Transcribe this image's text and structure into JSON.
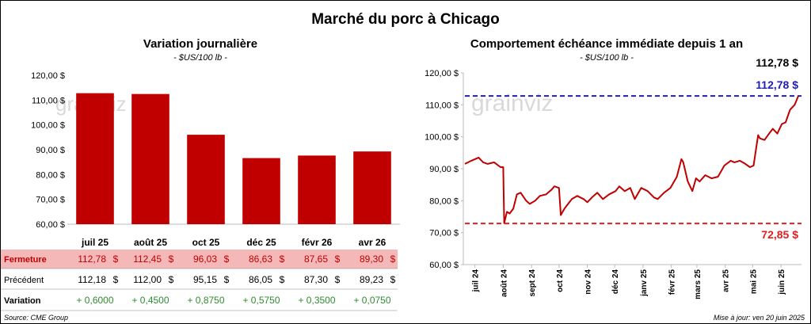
{
  "main_title": "Marché du porc à Chicago",
  "left": {
    "title": "Variation journalière",
    "subtitle": "- $US/100 lb -",
    "watermark": "grainviz",
    "row_labels": {
      "close": "Fermeture",
      "previous": "Précédent",
      "change": "Variation"
    },
    "currency": "$",
    "colors": {
      "bar": "#c00000",
      "close_row_bg": "#f4b8b8",
      "close_text": "#c00000",
      "change_text": "#2e8b2e"
    }
  },
  "right": {
    "title": "Comportement échéance immédiate depuis 1 an",
    "subtitle": "- $US/100 lb -",
    "watermark": "grainviz",
    "top_value_label": "112,78 $",
    "high_label": "112,78 $",
    "low_label": "72,85 $",
    "colors": {
      "line": "#c00000",
      "high_line": "#1f1fb0",
      "low_line": "#e02020"
    }
  },
  "footer": {
    "source": "Source: CME Group",
    "updated": "Mise à jour: ven 20 juin 2025"
  },
  "chart_data": [
    {
      "type": "bar",
      "title": "Variation journalière",
      "subtitle": "- $US/100 lb -",
      "categories": [
        "juil 25",
        "août 25",
        "oct 25",
        "déc 25",
        "févr 26",
        "avr 26"
      ],
      "series": [
        {
          "name": "Fermeture",
          "values": [
            112.78,
            112.45,
            96.03,
            86.63,
            87.65,
            89.3
          ]
        }
      ],
      "close_labels": [
        "112,78",
        "112,45",
        "96,03",
        "86,63",
        "87,65",
        "89,30"
      ],
      "previous": [
        112.18,
        112.0,
        95.15,
        86.05,
        87.3,
        89.23
      ],
      "previous_labels": [
        "112,18",
        "112,00",
        "95,15",
        "86,05",
        "87,30",
        "89,23"
      ],
      "change": [
        0.6,
        0.45,
        0.875,
        0.575,
        0.35,
        0.075
      ],
      "change_labels": [
        "+ 0,6000",
        "+ 0,4500",
        "+ 0,8750",
        "+ 0,5750",
        "+ 0,3500",
        "+ 0,0750"
      ],
      "ylim": [
        60,
        120
      ],
      "yticks": [
        60,
        70,
        80,
        90,
        100,
        110,
        120
      ],
      "ytick_labels": [
        "60,00 $",
        "70,00 $",
        "80,00 $",
        "90,00 $",
        "100,00 $",
        "110,00 $",
        "120,00 $"
      ],
      "grid": false,
      "legend": "none"
    },
    {
      "type": "line",
      "title": "Comportement échéance immédiate depuis 1 an",
      "subtitle": "- $US/100 lb -",
      "x": [
        "2024-06-20",
        "2024-06-27",
        "2024-07-05",
        "2024-07-10",
        "2024-07-15",
        "2024-07-22",
        "2024-07-29",
        "2024-08-01",
        "2024-08-02",
        "2024-08-05",
        "2024-08-08",
        "2024-08-12",
        "2024-08-16",
        "2024-08-20",
        "2024-08-26",
        "2024-08-30",
        "2024-09-05",
        "2024-09-10",
        "2024-09-17",
        "2024-09-23",
        "2024-09-26",
        "2024-10-01",
        "2024-10-03",
        "2024-10-07",
        "2024-10-11",
        "2024-10-15",
        "2024-10-21",
        "2024-10-28",
        "2024-11-01",
        "2024-11-06",
        "2024-11-12",
        "2024-11-18",
        "2024-11-25",
        "2024-12-02",
        "2024-12-06",
        "2024-12-12",
        "2024-12-18",
        "2024-12-23",
        "2024-12-30",
        "2025-01-06",
        "2025-01-13",
        "2025-01-17",
        "2025-01-24",
        "2025-01-31",
        "2025-02-07",
        "2025-02-12",
        "2025-02-14",
        "2025-02-19",
        "2025-02-24",
        "2025-02-28",
        "2025-03-04",
        "2025-03-10",
        "2025-03-17",
        "2025-03-24",
        "2025-03-31",
        "2025-04-07",
        "2025-04-11",
        "2025-04-17",
        "2025-04-23",
        "2025-04-28",
        "2025-05-02",
        "2025-05-07",
        "2025-05-09",
        "2025-05-14",
        "2025-05-19",
        "2025-05-23",
        "2025-05-28",
        "2025-06-02",
        "2025-06-06",
        "2025-06-11",
        "2025-06-16",
        "2025-06-20"
      ],
      "series": [
        {
          "values": [
            91.5,
            92.5,
            93.5,
            92.0,
            91.5,
            92.0,
            90.5,
            90.5,
            73.0,
            76.5,
            76.0,
            77.5,
            82.0,
            82.5,
            80.0,
            79.0,
            80.0,
            81.5,
            82.0,
            83.5,
            84.5,
            84.0,
            75.5,
            77.5,
            79.0,
            80.5,
            81.5,
            80.5,
            79.5,
            81.0,
            82.5,
            80.5,
            82.0,
            83.0,
            84.5,
            83.0,
            84.0,
            80.5,
            84.0,
            83.0,
            81.0,
            80.5,
            82.5,
            84.0,
            87.5,
            93.0,
            92.0,
            86.0,
            83.0,
            87.0,
            86.0,
            88.0,
            87.0,
            87.5,
            91.0,
            92.5,
            92.0,
            92.5,
            91.5,
            90.5,
            91.0,
            100.5,
            99.5,
            99.0,
            101.0,
            102.5,
            101.0,
            104.0,
            104.5,
            108.5,
            110.0,
            112.78
          ]
        }
      ],
      "xtick_labels": [
        "juil 24",
        "août 24",
        "sept 24",
        "oct 24",
        "nov 24",
        "déc 24",
        "janv 25",
        "févr 25",
        "mars 25",
        "avr 25",
        "mai 25",
        "juin 25"
      ],
      "ylim": [
        60,
        120
      ],
      "yticks": [
        60,
        70,
        80,
        90,
        100,
        110,
        120
      ],
      "ytick_labels": [
        "60,00 $",
        "70,00 $",
        "80,00 $",
        "90,00 $",
        "100,00 $",
        "110,00 $",
        "120,00 $"
      ],
      "reference_lines": [
        {
          "value": 112.78,
          "label": "112,78 $"
        },
        {
          "value": 72.85,
          "label": "72,85 $"
        }
      ],
      "grid": false,
      "legend": "none"
    }
  ]
}
